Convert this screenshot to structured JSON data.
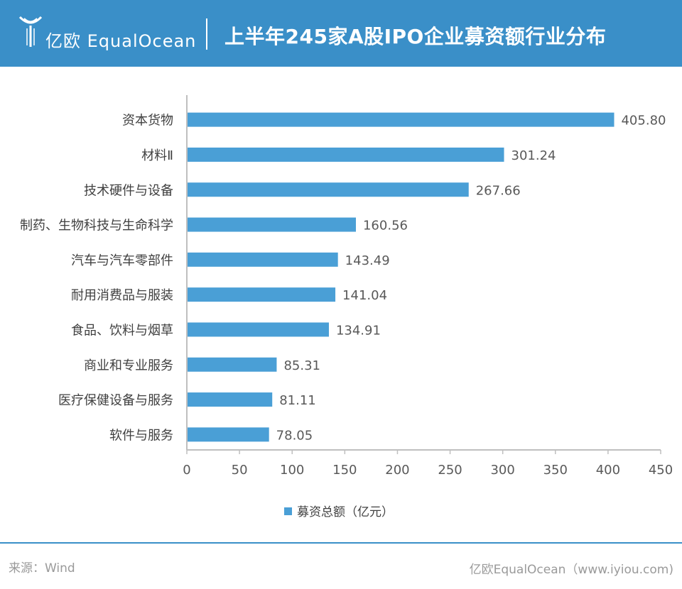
{
  "header": {
    "logo_text": "亿欧 EqualOcean",
    "title": "上半年245家A股IPO企业募资额行业分布"
  },
  "chart_data": {
    "type": "bar",
    "orientation": "horizontal",
    "categories": [
      "资本货物",
      "材料Ⅱ",
      "技术硬件与设备",
      "制药、生物科技与生命科学",
      "汽车与汽车零部件",
      "耐用消费品与服装",
      "食品、饮料与烟草",
      "商业和专业服务",
      "医疗保健设备与服务",
      "软件与服务"
    ],
    "series": [
      {
        "name": "募资总额（亿元）",
        "values": [
          405.8,
          301.24,
          267.66,
          160.56,
          143.49,
          141.04,
          134.91,
          85.31,
          81.11,
          78.05
        ],
        "value_labels": [
          "405.80",
          "301.24",
          "267.66",
          "160.56",
          "143.49",
          "141.04",
          "134.91",
          "85.31",
          "81.11",
          "78.05"
        ]
      }
    ],
    "xlim": [
      0,
      450
    ],
    "xticks": [
      0,
      50,
      100,
      150,
      200,
      250,
      300,
      350,
      400,
      450
    ],
    "grid": false,
    "legend_position": "bottom",
    "bar_color": "#4a9fd6"
  },
  "footer": {
    "source": "来源：Wind",
    "credit": "亿欧EqualOcean（www.iyiou.com)"
  },
  "colors": {
    "header_bg": "#3a8fc8",
    "bar": "#4a9fd6",
    "axis": "#bfbfbf",
    "text": "#595959"
  }
}
